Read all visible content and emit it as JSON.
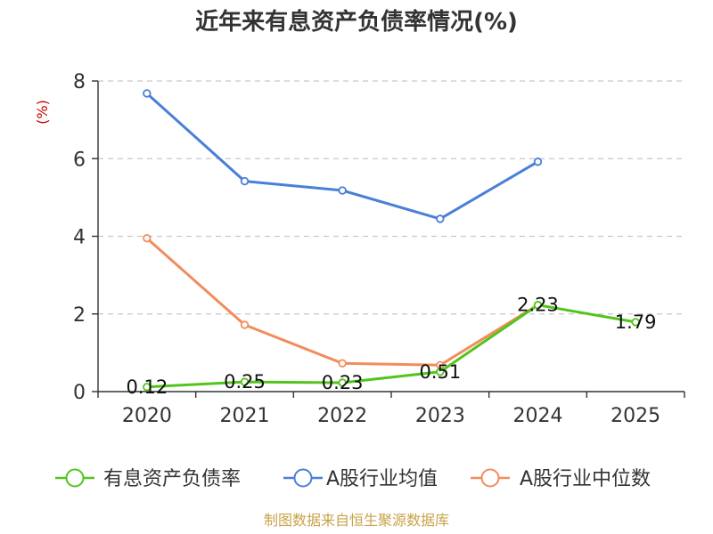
{
  "chart_data": {
    "type": "line",
    "title": "近年来有息资产负债率情况(%)",
    "ylabel": "(%)",
    "categories": [
      "2020",
      "2021",
      "2022",
      "2023",
      "2024",
      "2025"
    ],
    "ylim": [
      0,
      8
    ],
    "yticks": [
      0,
      2,
      4,
      6,
      8
    ],
    "grid": true,
    "legend_position": "bottom",
    "series": [
      {
        "name": "有息资产负债率",
        "color": "#52c41a",
        "values": [
          0.12,
          0.25,
          0.23,
          0.51,
          2.23,
          1.79
        ],
        "data_labels": [
          "0.12",
          "0.25",
          "0.23",
          "0.51",
          "2.23",
          "1.79"
        ]
      },
      {
        "name": "A股行业均值",
        "color": "#4a7fd9",
        "values": [
          7.68,
          5.42,
          5.18,
          4.45,
          5.92,
          null
        ]
      },
      {
        "name": "A股行业中位数",
        "color": "#f28c5a",
        "values": [
          3.95,
          1.72,
          0.73,
          0.68,
          2.23,
          null
        ]
      }
    ]
  },
  "footer": {
    "source": "制图数据来自恒生聚源数据库"
  }
}
